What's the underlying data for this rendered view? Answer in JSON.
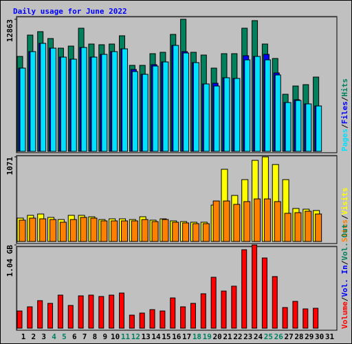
{
  "title": "Daily usage for June 2022",
  "legend_separator": "/",
  "categories": [
    "1",
    "2",
    "3",
    "4",
    "5",
    "6",
    "7",
    "8",
    "9",
    "10",
    "11",
    "12",
    "13",
    "14",
    "15",
    "16",
    "17",
    "18",
    "19",
    "20",
    "21",
    "22",
    "23",
    "24",
    "25",
    "26",
    "27",
    "28",
    "29",
    "30",
    "31"
  ],
  "category_colors": [
    "#000000",
    "#000000",
    "#000000",
    "#008060",
    "#008060",
    "#000000",
    "#000000",
    "#000000",
    "#000000",
    "#000000",
    "#008060",
    "#008060",
    "#000000",
    "#000000",
    "#000000",
    "#000000",
    "#000000",
    "#008060",
    "#008060",
    "#000000",
    "#000000",
    "#000000",
    "#000000",
    "#000000",
    "#008060",
    "#008060",
    "#000000",
    "#000000",
    "#000000",
    "#000000",
    "#000000"
  ],
  "chart_data": [
    {
      "type": "bar",
      "legend_order": "reverse",
      "ylim": [
        0,
        12863
      ],
      "yticks": [
        12863
      ],
      "series": [
        {
          "name": "Hits",
          "color": "#00805c",
          "values": [
            9246,
            11323,
            11658,
            10988,
            10050,
            10251,
            11993,
            10452,
            10385,
            10452,
            11256,
            8375,
            8375,
            9514,
            9648,
            11390,
            12863,
            9648,
            9380,
            8107,
            9514,
            9514,
            11993,
            12730,
            10452,
            9045,
            5561,
            6365,
            6499,
            7236,
            null
          ]
        },
        {
          "name": "Files",
          "color": "#0000ff",
          "values": [
            8107,
            9715,
            10519,
            10050,
            9179,
            8978,
            10117,
            9179,
            9447,
            9715,
            9983,
            7973,
            7504,
            8442,
            8710,
            10318,
            9715,
            8643,
            6566,
            6633,
            7169,
            7102,
            9313,
            9246,
            9447,
            7638,
            4757,
            5025,
            4623,
            4422,
            null
          ]
        },
        {
          "name": "Pages",
          "color": "#00e0ff",
          "values": [
            8107,
            9715,
            10519,
            10050,
            9179,
            8978,
            10117,
            9179,
            9447,
            9715,
            9983,
            7772,
            7504,
            8308,
            8710,
            10318,
            9581,
            8643,
            6566,
            6365,
            7169,
            7102,
            8911,
            9246,
            8911,
            7437,
            4757,
            4958,
            4623,
            4422,
            null
          ]
        }
      ]
    },
    {
      "type": "bar",
      "legend_order": "reverse",
      "ylim": [
        0,
        1071
      ],
      "yticks": [
        1071
      ],
      "series": [
        {
          "name": "Visits",
          "color": "#ffff00",
          "values": [
            296,
            331,
            348,
            305,
            278,
            331,
            331,
            313,
            278,
            287,
            287,
            278,
            313,
            270,
            287,
            261,
            252,
            244,
            244,
            461,
            914,
            583,
            783,
            1027,
            1071,
            974,
            783,
            418,
            409,
            392,
            null
          ]
        },
        {
          "name": "Sites",
          "color": "#ff8000",
          "values": [
            270,
            296,
            287,
            278,
            244,
            278,
            305,
            296,
            261,
            261,
            261,
            261,
            278,
            252,
            278,
            244,
            235,
            226,
            226,
            513,
            513,
            470,
            505,
            539,
            539,
            505,
            357,
            365,
            383,
            348,
            null
          ]
        }
      ]
    },
    {
      "type": "bar",
      "legend_order": "forward",
      "ylim": [
        0,
        1.04
      ],
      "yticks": [
        {
          "value": 1.04,
          "label": "1.04 GB"
        }
      ],
      "series": [
        {
          "name": "Volume",
          "color": "#ff0000",
          "values": [
            0.215,
            0.267,
            0.344,
            0.31,
            0.413,
            0.284,
            0.404,
            0.413,
            0.396,
            0.413,
            0.439,
            0.163,
            0.189,
            0.232,
            0.215,
            0.378,
            0.267,
            0.31,
            0.43,
            0.636,
            0.464,
            0.525,
            0.98,
            1.04,
            0.877,
            0.645,
            0.258,
            0.335,
            0.241,
            0.249,
            null
          ]
        }
      ],
      "legend_extra": [
        {
          "name": "Vol. In",
          "color": "#0000ff"
        },
        {
          "name": "Vol. Out",
          "color": "#00805c"
        }
      ]
    }
  ]
}
